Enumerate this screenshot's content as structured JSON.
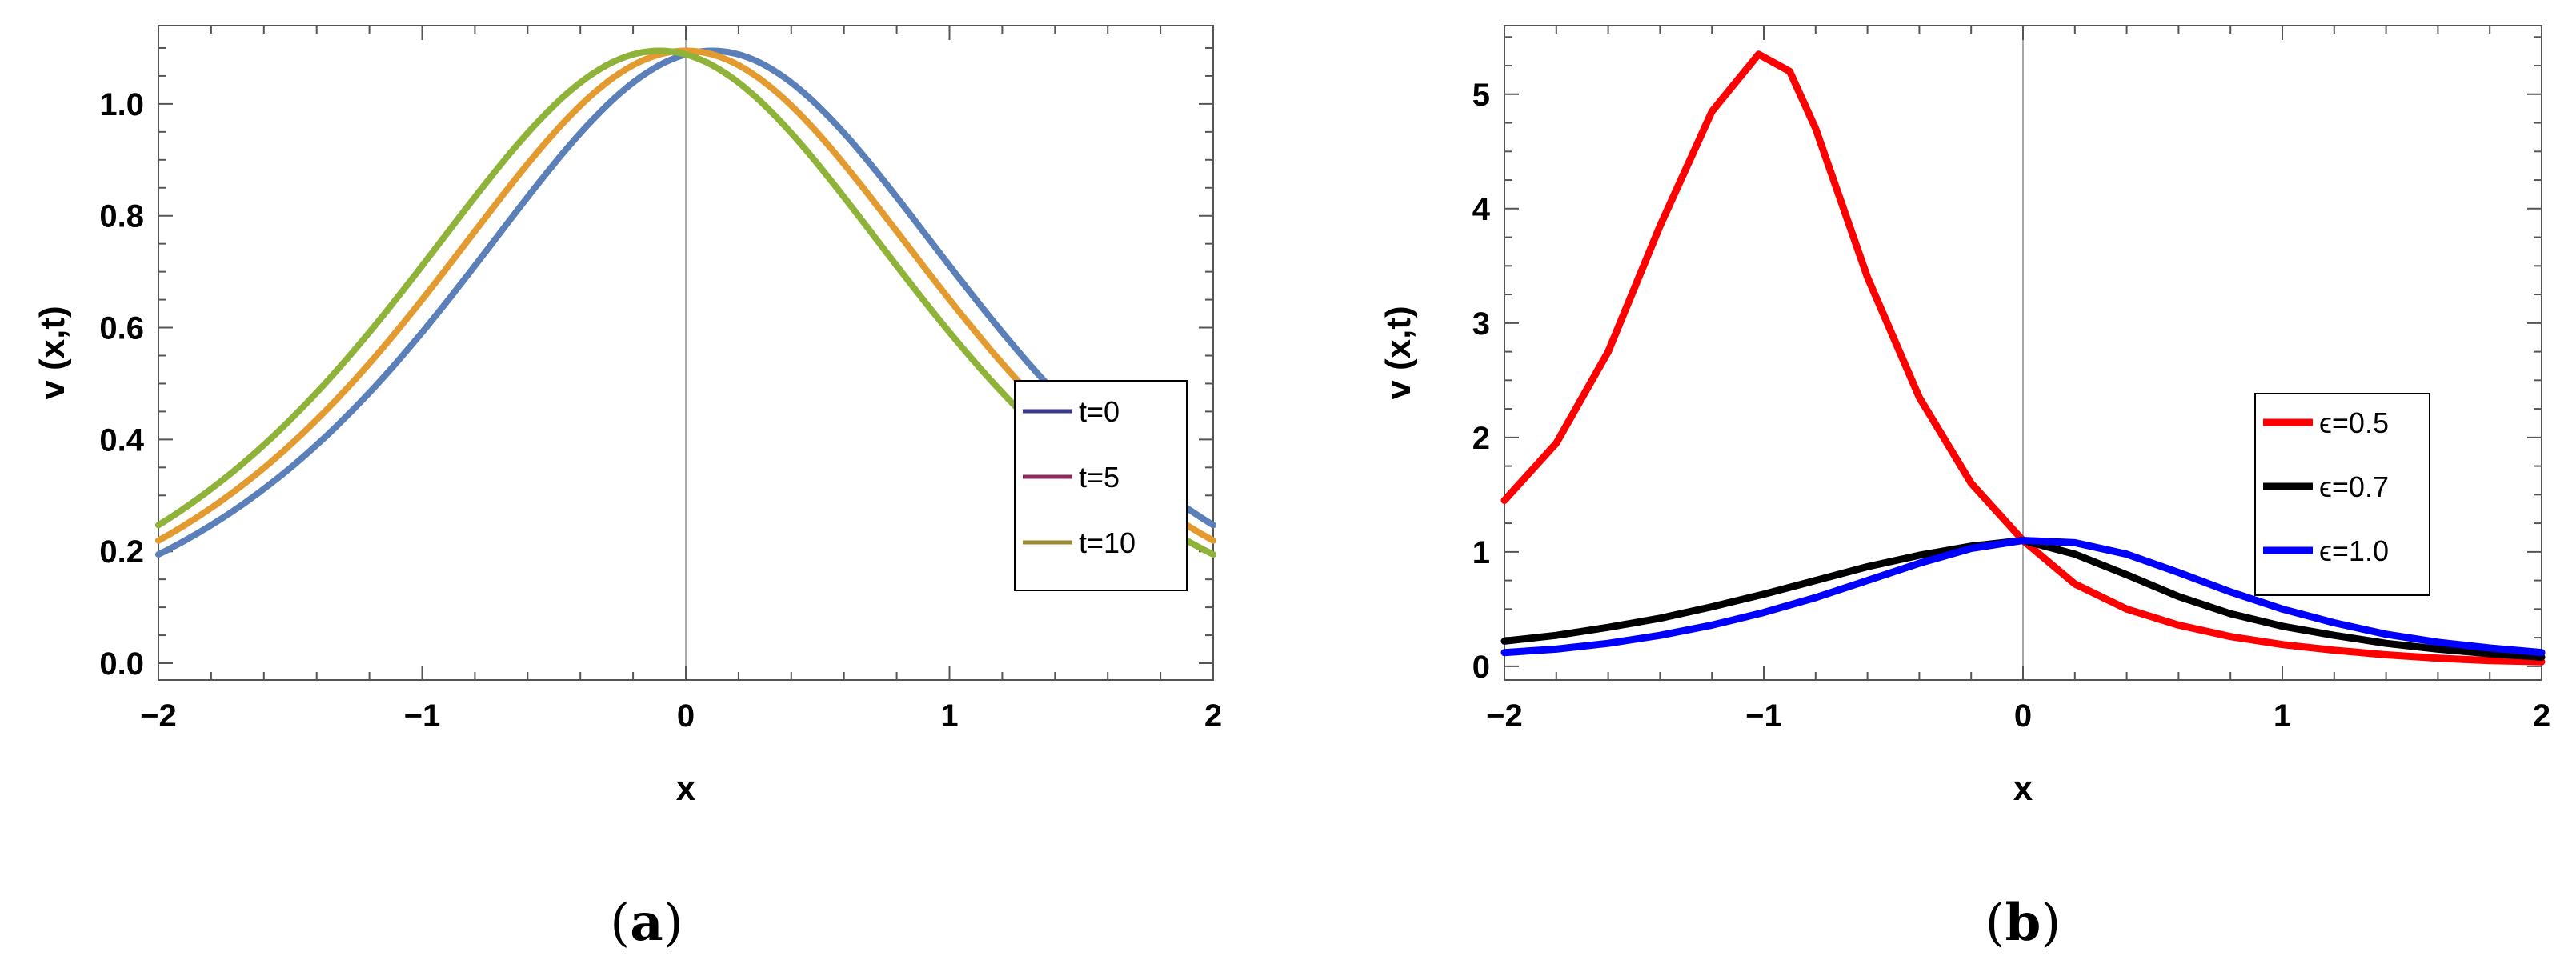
{
  "chart_data": [
    {
      "type": "line",
      "panel": "(a)",
      "caption_open": "(",
      "caption_letter": "a",
      "caption_close": ")",
      "xlabel": "x",
      "ylabel": "v (x,t)",
      "xlim": [
        -2,
        2
      ],
      "ylim": [
        -0.03,
        1.14
      ],
      "xticks": [
        -2,
        -1,
        0,
        1,
        2
      ],
      "xtick_labels": [
        "−2",
        "−1",
        "0",
        "1",
        "2"
      ],
      "yticks": [
        0.0,
        0.2,
        0.4,
        0.6,
        0.8,
        1.0
      ],
      "ytick_labels": [
        "0.0",
        "0.2",
        "0.4",
        "0.6",
        "0.8",
        "1.0"
      ],
      "legend_position": "right-bottom",
      "series": [
        {
          "name": "t=0",
          "legend_color": "#3a3a8c",
          "line_color": "#5b7fb8",
          "shift": 0.1,
          "peak": 1.095,
          "k": 1.05
        },
        {
          "name": "t=5",
          "legend_color": "#8c2a5e",
          "line_color": "#e39a2e",
          "shift": 0.0,
          "peak": 1.095,
          "k": 1.05
        },
        {
          "name": "t=10",
          "legend_color": "#9a8a2e",
          "line_color": "#8fb338",
          "shift": -0.1,
          "peak": 1.095,
          "k": 1.05
        }
      ]
    },
    {
      "type": "line",
      "panel": "(b)",
      "caption_open": "(",
      "caption_letter": "b",
      "caption_close": ")",
      "xlabel": "x",
      "ylabel": "v (x,t)",
      "xlim": [
        -2,
        2
      ],
      "ylim": [
        -0.12,
        5.6
      ],
      "xticks": [
        -2,
        -1,
        0,
        1,
        2
      ],
      "xtick_labels": [
        "−2",
        "−1",
        "0",
        "1",
        "2"
      ],
      "yticks": [
        0,
        1,
        2,
        3,
        4,
        5
      ],
      "ytick_labels": [
        "0",
        "1",
        "2",
        "3",
        "4",
        "5"
      ],
      "legend_position": "right-middle",
      "series": [
        {
          "name": "ϵ=0.5",
          "color": "#ff0000",
          "points": [
            [
              -2,
              1.45
            ],
            [
              -1.8,
              1.95
            ],
            [
              -1.6,
              2.75
            ],
            [
              -1.4,
              3.85
            ],
            [
              -1.2,
              4.85
            ],
            [
              -1.02,
              5.35
            ],
            [
              -0.9,
              5.2
            ],
            [
              -0.8,
              4.7
            ],
            [
              -0.6,
              3.4
            ],
            [
              -0.4,
              2.35
            ],
            [
              -0.2,
              1.6
            ],
            [
              0,
              1.1
            ],
            [
              0.2,
              0.72
            ],
            [
              0.4,
              0.5
            ],
            [
              0.6,
              0.36
            ],
            [
              0.8,
              0.26
            ],
            [
              1,
              0.19
            ],
            [
              1.2,
              0.14
            ],
            [
              1.4,
              0.1
            ],
            [
              1.6,
              0.07
            ],
            [
              1.8,
              0.05
            ],
            [
              2,
              0.04
            ]
          ]
        },
        {
          "name": "ϵ=0.7",
          "color": "#000000",
          "points": [
            [
              -2,
              0.22
            ],
            [
              -1.8,
              0.27
            ],
            [
              -1.6,
              0.34
            ],
            [
              -1.4,
              0.42
            ],
            [
              -1.2,
              0.52
            ],
            [
              -1,
              0.63
            ],
            [
              -0.8,
              0.75
            ],
            [
              -0.6,
              0.87
            ],
            [
              -0.4,
              0.97
            ],
            [
              -0.2,
              1.05
            ],
            [
              0,
              1.1
            ],
            [
              0.2,
              0.98
            ],
            [
              0.4,
              0.8
            ],
            [
              0.6,
              0.61
            ],
            [
              0.8,
              0.46
            ],
            [
              1,
              0.35
            ],
            [
              1.2,
              0.27
            ],
            [
              1.4,
              0.2
            ],
            [
              1.6,
              0.15
            ],
            [
              1.8,
              0.11
            ],
            [
              2,
              0.08
            ]
          ]
        },
        {
          "name": "ϵ=1.0",
          "color": "#0000ff",
          "points": [
            [
              -2,
              0.12
            ],
            [
              -1.8,
              0.15
            ],
            [
              -1.6,
              0.2
            ],
            [
              -1.4,
              0.27
            ],
            [
              -1.2,
              0.36
            ],
            [
              -1,
              0.47
            ],
            [
              -0.8,
              0.6
            ],
            [
              -0.6,
              0.75
            ],
            [
              -0.4,
              0.9
            ],
            [
              -0.2,
              1.03
            ],
            [
              0,
              1.1
            ],
            [
              0.2,
              1.08
            ],
            [
              0.4,
              0.98
            ],
            [
              0.6,
              0.82
            ],
            [
              0.8,
              0.65
            ],
            [
              1,
              0.5
            ],
            [
              1.2,
              0.38
            ],
            [
              1.4,
              0.28
            ],
            [
              1.6,
              0.21
            ],
            [
              1.8,
              0.16
            ],
            [
              2,
              0.12
            ]
          ]
        }
      ]
    }
  ]
}
